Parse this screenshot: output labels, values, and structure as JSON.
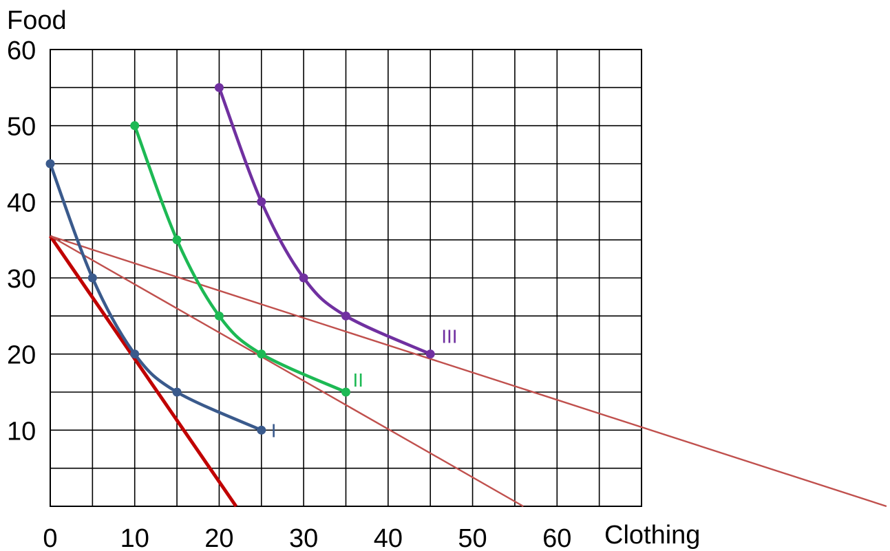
{
  "chart_data": {
    "type": "line",
    "title": "",
    "xlabel": "Clothing",
    "ylabel": "Food",
    "xlim": [
      0,
      70
    ],
    "ylim": [
      0,
      60
    ],
    "x_ticks": [
      0,
      10,
      20,
      30,
      40,
      50,
      60
    ],
    "x_tick_labels": [
      "0",
      "10",
      "20",
      "30",
      "40",
      "50",
      "60"
    ],
    "y_ticks": [
      10,
      20,
      30,
      40,
      50,
      60
    ],
    "y_tick_labels": [
      "10",
      "20",
      "30",
      "40",
      "50",
      "60"
    ],
    "grid": true,
    "grid_step_x": 5,
    "grid_step_y": 5,
    "series": [
      {
        "name": "I",
        "color": "#3a5a8c",
        "smooth": true,
        "x": [
          0,
          5,
          10,
          15,
          25
        ],
        "y": [
          45,
          30,
          20,
          15,
          10
        ]
      },
      {
        "name": "II",
        "color": "#1db954",
        "smooth": true,
        "x": [
          10,
          15,
          20,
          25,
          35
        ],
        "y": [
          50,
          35,
          25,
          20,
          15
        ]
      },
      {
        "name": "III",
        "color": "#7030a0",
        "smooth": true,
        "x": [
          20,
          25,
          30,
          35,
          45
        ],
        "y": [
          55,
          40,
          30,
          25,
          20
        ]
      }
    ],
    "budget_lines": [
      {
        "color": "#c00000",
        "emphasis": "thick",
        "x": [
          0,
          22
        ],
        "y": [
          35.5,
          0
        ]
      },
      {
        "color": "#c0504d",
        "emphasis": "thin",
        "x": [
          0,
          56
        ],
        "y": [
          35.5,
          0
        ]
      },
      {
        "color": "#c0504d",
        "emphasis": "thin",
        "x": [
          0,
          99
        ],
        "y": [
          35.5,
          0
        ]
      }
    ]
  }
}
